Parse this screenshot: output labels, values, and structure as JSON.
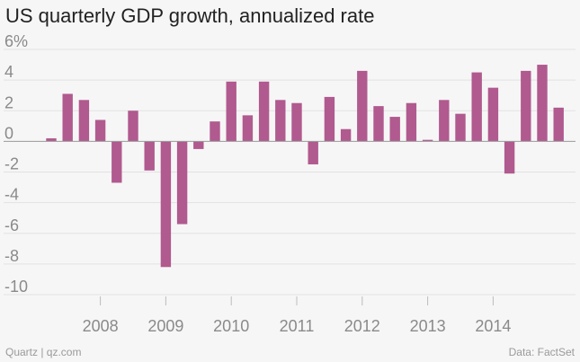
{
  "chart_data": {
    "type": "bar",
    "title": "US quarterly GDP growth, annualized rate",
    "xlabel": "",
    "ylabel": "",
    "ylim": [
      -10,
      6
    ],
    "yticks": [
      6,
      4,
      2,
      0,
      -2,
      -4,
      -6,
      -8,
      -10
    ],
    "ytick_labels": [
      "6%",
      "4",
      "2",
      "0",
      "-2",
      "-4",
      "-6",
      "-8",
      "-10"
    ],
    "year_labels": [
      "2008",
      "2009",
      "2010",
      "2011",
      "2012",
      "2013",
      "2014"
    ],
    "categories": [
      "2007 Q2",
      "2007 Q3",
      "2007 Q4",
      "2008 Q1",
      "2008 Q2",
      "2008 Q3",
      "2008 Q4",
      "2009 Q1",
      "2009 Q2",
      "2009 Q3",
      "2009 Q4",
      "2010 Q1",
      "2010 Q2",
      "2010 Q3",
      "2010 Q4",
      "2011 Q1",
      "2011 Q2",
      "2011 Q3",
      "2011 Q4",
      "2012 Q1",
      "2012 Q2",
      "2012 Q3",
      "2012 Q4",
      "2013 Q1",
      "2013 Q2",
      "2013 Q3",
      "2013 Q4",
      "2014 Q1",
      "2014 Q2",
      "2014 Q3",
      "2014 Q4",
      "2015 Q1"
    ],
    "values": [
      0.2,
      3.1,
      2.7,
      1.4,
      -2.7,
      2.0,
      -1.9,
      -8.2,
      -5.4,
      -0.5,
      1.3,
      3.9,
      1.7,
      3.9,
      2.7,
      2.5,
      -1.5,
      2.9,
      0.8,
      4.6,
      2.3,
      1.6,
      2.5,
      0.1,
      2.7,
      1.8,
      4.5,
      3.5,
      -2.1,
      4.6,
      5.0,
      2.2
    ],
    "bar_color": "#b05a8f"
  },
  "footer": {
    "source_left": "Quartz | qz.com",
    "source_right": "Data: FactSet"
  }
}
